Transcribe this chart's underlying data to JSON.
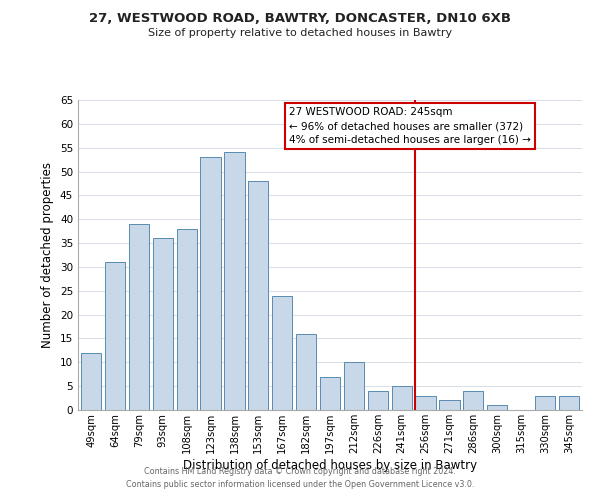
{
  "title": "27, WESTWOOD ROAD, BAWTRY, DONCASTER, DN10 6XB",
  "subtitle": "Size of property relative to detached houses in Bawtry",
  "xlabel": "Distribution of detached houses by size in Bawtry",
  "ylabel": "Number of detached properties",
  "bar_color": "#c8d8e8",
  "bar_edge_color": "#5a8ab0",
  "categories": [
    "49sqm",
    "64sqm",
    "79sqm",
    "93sqm",
    "108sqm",
    "123sqm",
    "138sqm",
    "153sqm",
    "167sqm",
    "182sqm",
    "197sqm",
    "212sqm",
    "226sqm",
    "241sqm",
    "256sqm",
    "271sqm",
    "286sqm",
    "300sqm",
    "315sqm",
    "330sqm",
    "345sqm"
  ],
  "values": [
    12,
    31,
    39,
    36,
    38,
    53,
    54,
    48,
    24,
    16,
    7,
    10,
    4,
    5,
    3,
    2,
    4,
    1,
    0,
    3,
    3
  ],
  "ylim": [
    0,
    65
  ],
  "yticks": [
    0,
    5,
    10,
    15,
    20,
    25,
    30,
    35,
    40,
    45,
    50,
    55,
    60,
    65
  ],
  "vline_x": 13.57,
  "vline_color": "#cc0000",
  "annotation_title": "27 WESTWOOD ROAD: 245sqm",
  "annotation_line1": "← 96% of detached houses are smaller (372)",
  "annotation_line2": "4% of semi-detached houses are larger (16) →",
  "annotation_box_color": "#ffffff",
  "annotation_box_edge": "#cc0000",
  "footer1": "Contains HM Land Registry data © Crown copyright and database right 2024.",
  "footer2": "Contains public sector information licensed under the Open Government Licence v3.0.",
  "background_color": "#ffffff",
  "grid_color": "#d0d8e0"
}
